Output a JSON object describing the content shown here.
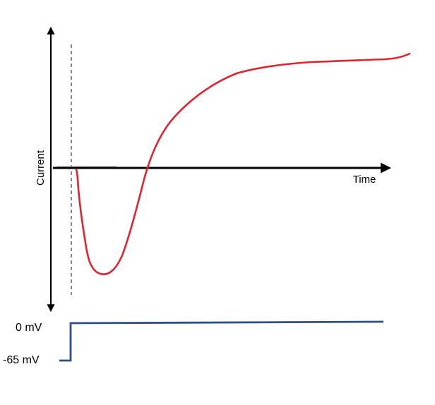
{
  "axes": {
    "y_label": "Current",
    "x_label": "Time"
  },
  "voltage_step": {
    "high_label": "0 mV",
    "low_label": "-65 mV"
  },
  "colors": {
    "current_trace": "#e02530",
    "voltage_trace": "#2e4f82",
    "axis": "#000000",
    "marker_line": "#555555",
    "baseline": "#b8b8b8"
  }
}
